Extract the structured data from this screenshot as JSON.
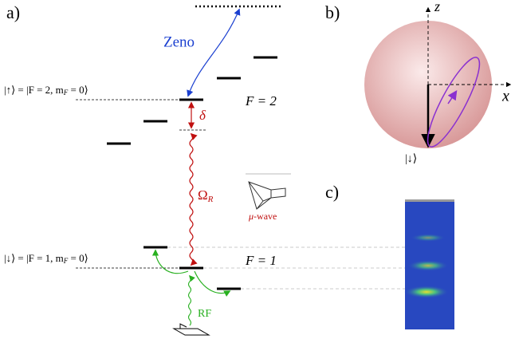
{
  "panels": {
    "a": "a)",
    "b": "b)",
    "c": "c)"
  },
  "zeno": "Zeno",
  "up_state": [
    "|↑⟩ = |F = 2, m",
    "F",
    " = 0⟩"
  ],
  "down_state": [
    "|↓⟩ = |F = 1, m",
    "F",
    " = 0⟩"
  ],
  "f2": "F = 2",
  "f1": "F = 1",
  "delta": "δ",
  "rabi": [
    "Ω",
    "R"
  ],
  "microwave": [
    "μ",
    "-wave"
  ],
  "rf": "RF",
  "bloch": {
    "z": "z",
    "x": "x",
    "down": "|↓⟩"
  }
}
